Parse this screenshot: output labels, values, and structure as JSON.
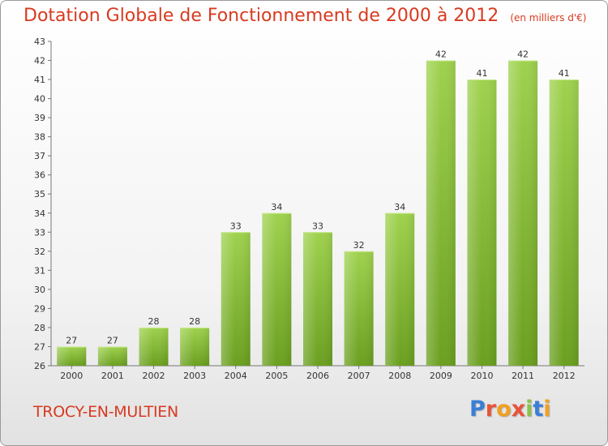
{
  "chart_data": {
    "type": "bar",
    "title": "Dotation Globale de Fonctionnement de 2000 à 2012",
    "subtitle": "(en milliers d'€)",
    "categories": [
      "2000",
      "2001",
      "2002",
      "2003",
      "2004",
      "2005",
      "2006",
      "2007",
      "2008",
      "2009",
      "2010",
      "2011",
      "2012"
    ],
    "values": [
      27,
      27,
      28,
      28,
      33,
      34,
      33,
      32,
      34,
      42,
      41,
      42,
      41
    ],
    "ylim": [
      26,
      43
    ],
    "yticks": [
      26,
      27,
      28,
      29,
      30,
      31,
      32,
      33,
      34,
      35,
      36,
      37,
      38,
      39,
      40,
      41,
      42,
      43
    ],
    "grid": false,
    "bar_color": "#8cc63f"
  },
  "footer": {
    "commune": "TROCY-EN-MULTIEN",
    "logo": {
      "p": "P",
      "r": "r",
      "o": "o",
      "x": "x",
      "i1": "i",
      "t": "t",
      "i2": "i"
    }
  }
}
